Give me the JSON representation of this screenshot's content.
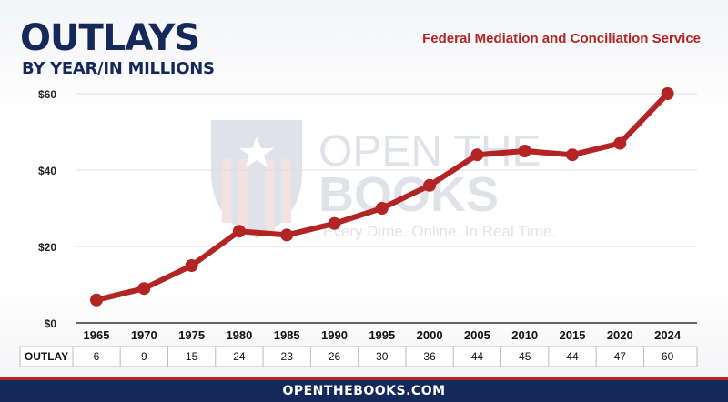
{
  "header": {
    "title": "OUTLAYS",
    "subtitle": "BY YEAR/IN MILLIONS",
    "agency": "Federal Mediation and Conciliation Service"
  },
  "watermark": {
    "line1": "OPEN THE",
    "line2": "BOOKS",
    "tagline": "Every Dime. Online. In Real Time."
  },
  "footer": {
    "site": "OPENTHEBOOKS.COM"
  },
  "colors": {
    "navy": "#14285a",
    "red": "#b32424"
  },
  "chart_data": {
    "type": "line",
    "categories": [
      "1965",
      "1970",
      "1975",
      "1980",
      "1985",
      "1990",
      "1995",
      "2000",
      "2005",
      "2010",
      "2015",
      "2020",
      "2024"
    ],
    "values": [
      6,
      9,
      15,
      24,
      23,
      26,
      30,
      36,
      44,
      45,
      44,
      47,
      60
    ],
    "yticks": [
      0,
      20,
      40,
      60
    ],
    "ytick_labels": [
      "$0",
      "$20",
      "$40",
      "$60"
    ],
    "ylim": [
      0,
      60
    ],
    "grid": true,
    "row_label": "OUTLAY",
    "line_color": "#b32424"
  }
}
